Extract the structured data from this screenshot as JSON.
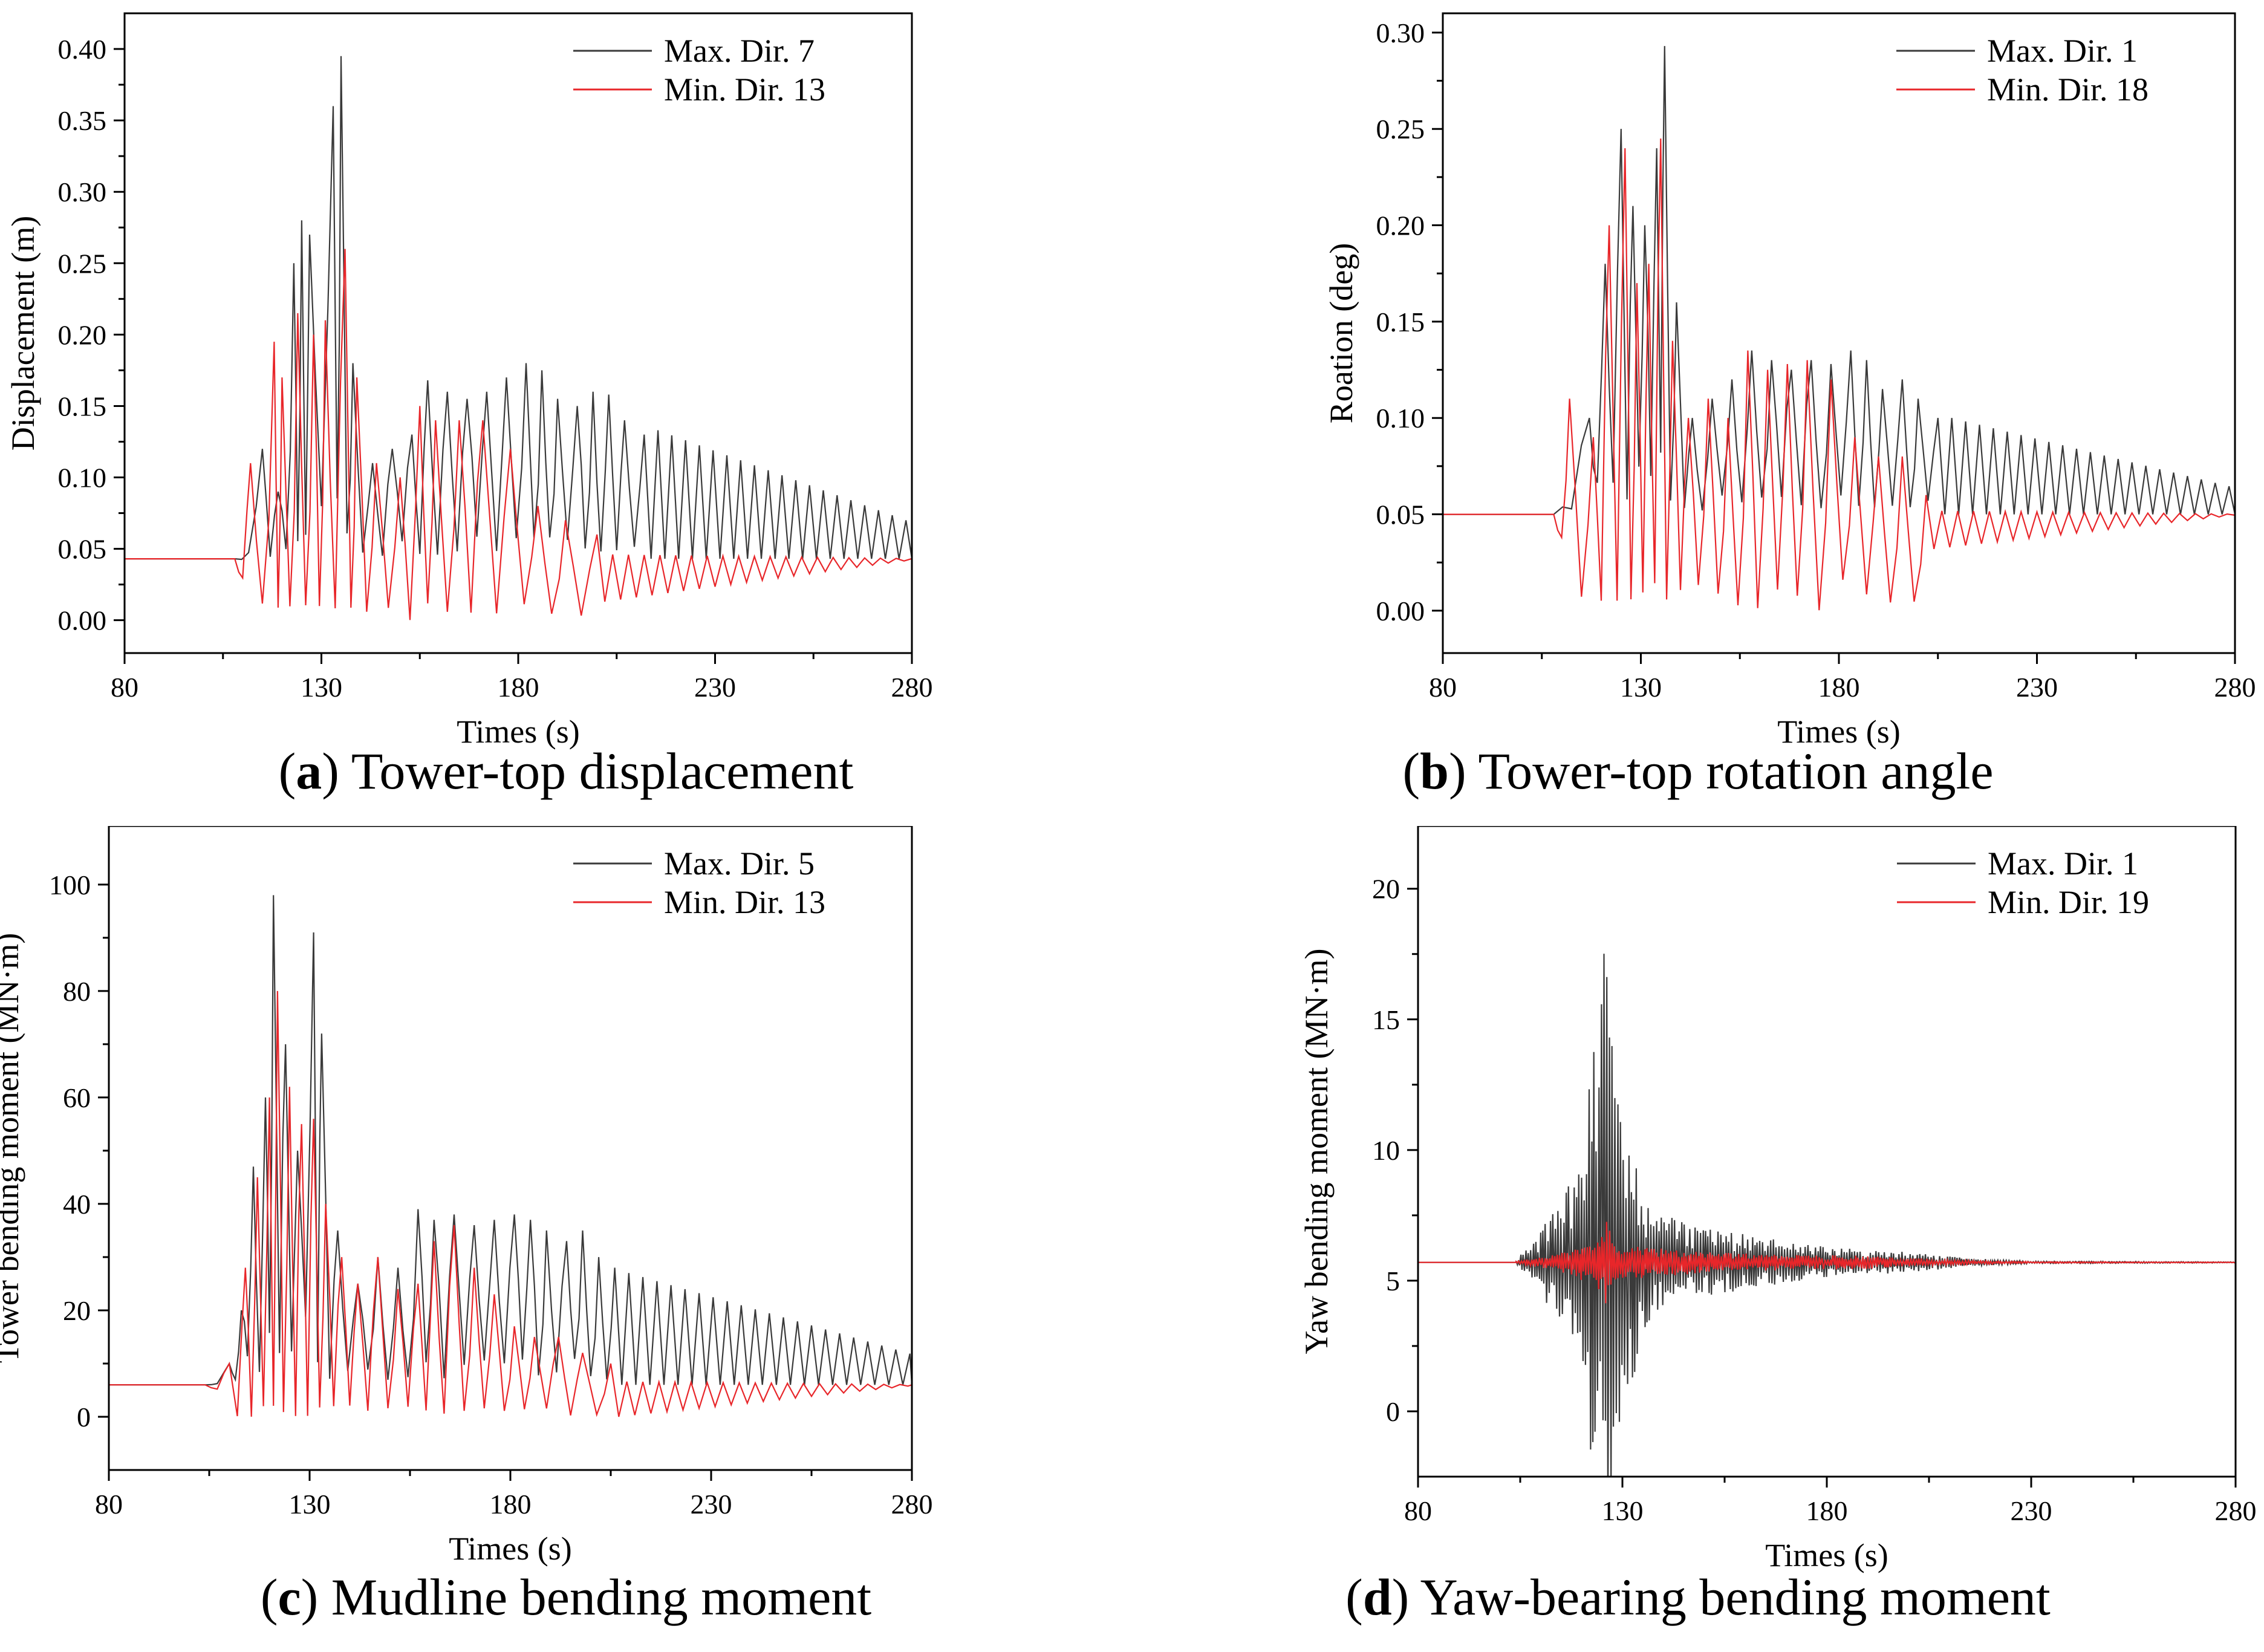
{
  "colors": {
    "max": "#3a3a3a",
    "min": "#e8262a",
    "axis": "#000000"
  },
  "chart_data": [
    {
      "id": "a",
      "type": "line",
      "caption_letter": "a",
      "caption_text": "Tower-top displacement",
      "xlabel": "Times (s)",
      "ylabel": "Displacement (m)",
      "xlim": [
        80,
        280
      ],
      "ylim": [
        -0.023,
        0.425
      ],
      "xticks": [
        80,
        130,
        180,
        230,
        280
      ],
      "yticks": [
        0.0,
        0.05,
        0.1,
        0.15,
        0.2,
        0.25,
        0.3,
        0.35,
        0.4
      ],
      "ytick_labels": [
        "0.00",
        "0.05",
        "0.10",
        "0.15",
        "0.20",
        "0.25",
        "0.30",
        "0.35",
        "0.40"
      ],
      "legend_position": "top-right",
      "series": [
        {
          "name": "Max. Dir. 7",
          "color": "max",
          "start": 108,
          "baseline": 0.043,
          "peaks": [
            [
              115,
              0.12
            ],
            [
              119,
              0.09
            ],
            [
              123,
              0.25
            ],
            [
              125,
              0.28
            ],
            [
              127,
              0.27
            ],
            [
              133,
              0.36
            ],
            [
              135,
              0.395
            ],
            [
              138,
              0.18
            ],
            [
              143,
              0.11
            ],
            [
              148,
              0.12
            ],
            [
              153,
              0.13
            ],
            [
              157,
              0.168
            ],
            [
              162,
              0.16
            ],
            [
              167,
              0.155
            ],
            [
              172,
              0.16
            ],
            [
              177,
              0.17
            ],
            [
              182,
              0.18
            ],
            [
              186,
              0.175
            ],
            [
              190,
              0.155
            ],
            [
              195,
              0.15
            ],
            [
              199,
              0.16
            ],
            [
              203,
              0.158
            ],
            [
              207,
              0.14
            ],
            [
              212,
              0.13
            ]
          ],
          "decay": {
            "from": 212,
            "period": 3.5,
            "amp": 0.09,
            "amp_end": 0.022
          }
        },
        {
          "name": "Min. Dir. 13",
          "color": "min",
          "start": 108,
          "baseline": 0.043,
          "peaks": [
            [
              112,
              0.11
            ],
            [
              118,
              0.195
            ],
            [
              120,
              0.17
            ],
            [
              124,
              0.215
            ],
            [
              128,
              0.2
            ],
            [
              131,
              0.21
            ],
            [
              136,
              0.26
            ],
            [
              139,
              0.17
            ],
            [
              144,
              0.11
            ],
            [
              150,
              0.1
            ],
            [
              155,
              0.15
            ],
            [
              159,
              0.14
            ],
            [
              165,
              0.14
            ],
            [
              171,
              0.14
            ],
            [
              178,
              0.12
            ],
            [
              185,
              0.08
            ],
            [
              192,
              0.07
            ],
            [
              200,
              0.06
            ]
          ],
          "troughs": 0.0,
          "decay": {
            "from": 200,
            "period": 4,
            "amp": 0.01,
            "amp_end": 0.0
          }
        }
      ]
    },
    {
      "id": "b",
      "type": "line",
      "caption_letter": "b",
      "caption_text": "Tower-top rotation angle",
      "xlabel": "Times (s)",
      "ylabel": "Roation (deg)",
      "xlim": [
        80,
        280
      ],
      "ylim": [
        -0.022,
        0.31
      ],
      "xticks": [
        80,
        130,
        180,
        230,
        280
      ],
      "yticks": [
        0.0,
        0.05,
        0.1,
        0.15,
        0.2,
        0.25,
        0.3
      ],
      "ytick_labels": [
        "0.00",
        "0.05",
        "0.10",
        "0.15",
        "0.20",
        "0.25",
        "0.30"
      ],
      "legend_position": "top-right",
      "series": [
        {
          "name": "Max. Dir. 1",
          "color": "max",
          "start": 108,
          "baseline": 0.05,
          "peaks": [
            [
              117,
              0.1
            ],
            [
              121,
              0.18
            ],
            [
              125,
              0.25
            ],
            [
              128,
              0.21
            ],
            [
              131,
              0.2
            ],
            [
              134,
              0.24
            ],
            [
              136,
              0.293
            ],
            [
              139,
              0.16
            ],
            [
              143,
              0.1
            ],
            [
              148,
              0.11
            ],
            [
              153,
              0.12
            ],
            [
              158,
              0.135
            ],
            [
              163,
              0.13
            ],
            [
              168,
              0.125
            ],
            [
              173,
              0.13
            ],
            [
              178,
              0.128
            ],
            [
              183,
              0.135
            ],
            [
              187,
              0.13
            ],
            [
              191,
              0.115
            ],
            [
              196,
              0.12
            ],
            [
              200,
              0.11
            ],
            [
              205,
              0.1
            ]
          ],
          "decay": {
            "from": 205,
            "period": 3.5,
            "amp": 0.05,
            "amp_end": 0.012
          }
        },
        {
          "name": "Min. Dir. 18",
          "color": "min",
          "start": 108,
          "baseline": 0.05,
          "peaks": [
            [
              112,
              0.11
            ],
            [
              118,
              0.09
            ],
            [
              122,
              0.2
            ],
            [
              126,
              0.24
            ],
            [
              129,
              0.17
            ],
            [
              132,
              0.18
            ],
            [
              135,
              0.245
            ],
            [
              138,
              0.14
            ],
            [
              142,
              0.1
            ],
            [
              147,
              0.11
            ],
            [
              152,
              0.1
            ],
            [
              157,
              0.135
            ],
            [
              162,
              0.125
            ],
            [
              167,
              0.128
            ],
            [
              172,
              0.13
            ],
            [
              178,
              0.12
            ],
            [
              184,
              0.09
            ],
            [
              190,
              0.08
            ],
            [
              196,
              0.08
            ],
            [
              202,
              0.06
            ]
          ],
          "troughs": 0.0,
          "decay": {
            "from": 202,
            "period": 4,
            "amp": 0.006,
            "amp_end": 0.0
          }
        }
      ]
    },
    {
      "id": "c",
      "type": "line",
      "caption_letter": "c",
      "caption_text": "Mudline bending moment",
      "xlabel": "Times (s)",
      "ylabel": "Tower bending moment (MN·m)",
      "xlim": [
        80,
        280
      ],
      "ylim": [
        -10,
        111
      ],
      "xticks": [
        80,
        130,
        180,
        230,
        280
      ],
      "yticks": [
        0,
        20,
        40,
        60,
        80,
        100
      ],
      "ytick_labels": [
        "0",
        "20",
        "40",
        "60",
        "80",
        "100"
      ],
      "legend_position": "top-right",
      "series": [
        {
          "name": "Max. Dir. 5",
          "color": "max",
          "start": 104,
          "baseline": 6,
          "peaks": [
            [
              110,
              10
            ],
            [
              113,
              20
            ],
            [
              116,
              47
            ],
            [
              119,
              60
            ],
            [
              121,
              98
            ],
            [
              124,
              70
            ],
            [
              127,
              50
            ],
            [
              131,
              91
            ],
            [
              133,
              72
            ],
            [
              137,
              35
            ],
            [
              142,
              25
            ],
            [
              147,
              30
            ],
            [
              152,
              28
            ],
            [
              157,
              39
            ],
            [
              161,
              37
            ],
            [
              166,
              38
            ],
            [
              171,
              36
            ],
            [
              176,
              37
            ],
            [
              181,
              38
            ],
            [
              185,
              37
            ],
            [
              189,
              35
            ],
            [
              194,
              33
            ],
            [
              198,
              35
            ],
            [
              202,
              30
            ],
            [
              206,
              28
            ]
          ],
          "decay": {
            "from": 206,
            "period": 3.5,
            "amp": 21,
            "amp_end": 5
          }
        },
        {
          "name": "Min. Dir. 13",
          "color": "min",
          "start": 104,
          "baseline": 6,
          "peaks": [
            [
              110,
              10
            ],
            [
              114,
              28
            ],
            [
              117,
              45
            ],
            [
              120,
              60
            ],
            [
              122,
              80
            ],
            [
              125,
              62
            ],
            [
              128,
              55
            ],
            [
              131,
              56
            ],
            [
              134,
              40
            ],
            [
              138,
              30
            ],
            [
              142,
              25
            ],
            [
              147,
              30
            ],
            [
              152,
              24
            ],
            [
              157,
              25
            ],
            [
              161,
              33
            ],
            [
              166,
              36
            ],
            [
              171,
              28
            ],
            [
              176,
              23
            ],
            [
              181,
              17
            ],
            [
              186,
              15
            ],
            [
              192,
              15
            ],
            [
              198,
              12
            ],
            [
              205,
              10
            ]
          ],
          "troughs": 0,
          "decay": {
            "from": 205,
            "period": 4,
            "amp": 2,
            "amp_end": 0
          }
        }
      ]
    },
    {
      "id": "d",
      "type": "line",
      "caption_letter": "d",
      "caption_text": "Yaw-bearing bending moment",
      "xlabel": "Times (s)",
      "ylabel": "Yaw bending moment (MN·m)",
      "xlim": [
        80,
        280
      ],
      "ylim": [
        -2.5,
        22.4
      ],
      "xticks": [
        80,
        130,
        180,
        230,
        280
      ],
      "yticks": [
        0,
        5,
        10,
        15,
        20
      ],
      "ytick_labels": [
        "0",
        "5",
        "10",
        "15",
        "20"
      ],
      "legend_position": "top-right",
      "series": [
        {
          "name": "Max. Dir. 1",
          "color": "max",
          "start": 104,
          "baseline": 5.7,
          "envelope": [
            [
              104,
              0.1
            ],
            [
              110,
              1.2
            ],
            [
              116,
              2.7
            ],
            [
              121,
              4.5
            ],
            [
              123,
              11.1
            ],
            [
              124,
              7
            ],
            [
              126,
              14.9
            ],
            [
              128,
              7
            ],
            [
              132,
              5
            ],
            [
              136,
              2.3
            ],
            [
              145,
              1.5
            ],
            [
              160,
              1.1
            ],
            [
              180,
              0.6
            ],
            [
              200,
              0.4
            ],
            [
              215,
              0.15
            ],
            [
              230,
              0.05
            ],
            [
              280,
              0.02
            ]
          ]
        },
        {
          "name": "Min. Dir. 19",
          "color": "min",
          "start": 104,
          "baseline": 5.7,
          "envelope": [
            [
              104,
              0.05
            ],
            [
              110,
              0.2
            ],
            [
              118,
              0.5
            ],
            [
              124,
              1.2
            ],
            [
              126,
              1.7
            ],
            [
              128,
              0.8
            ],
            [
              135,
              0.6
            ],
            [
              150,
              0.4
            ],
            [
              170,
              0.3
            ],
            [
              190,
              0.25
            ],
            [
              210,
              0.1
            ],
            [
              230,
              0.03
            ],
            [
              280,
              0.01
            ]
          ]
        }
      ]
    }
  ]
}
